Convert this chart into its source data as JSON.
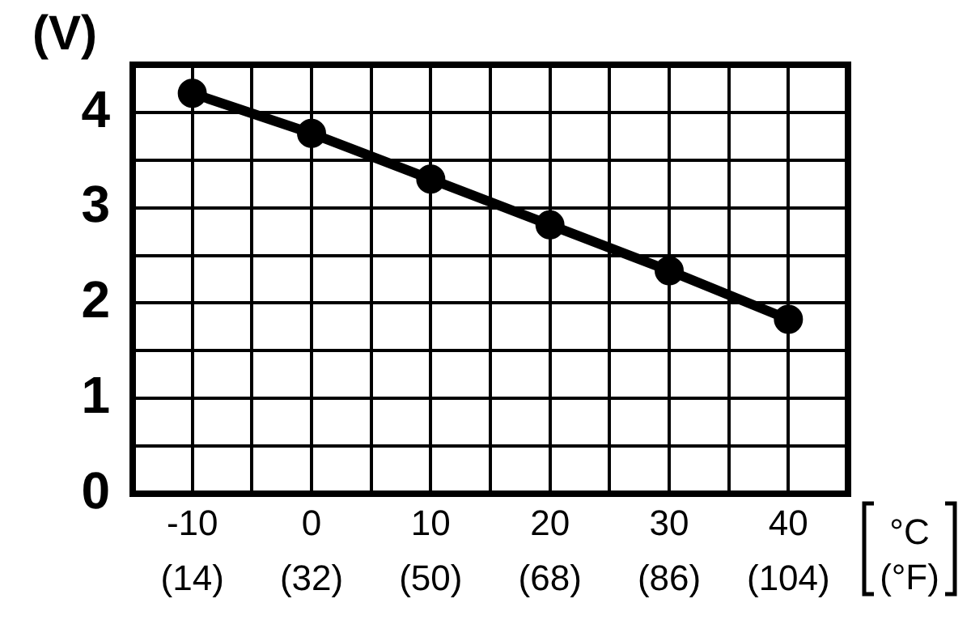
{
  "chart_data": {
    "type": "line",
    "ylabel": "(V)",
    "xlabel": "°C",
    "x2label": "(°F)",
    "x": [
      -10,
      0,
      10,
      20,
      30,
      40
    ],
    "series": [
      {
        "color": "#000000",
        "values": [
          4.2,
          3.78,
          3.3,
          2.82,
          2.34,
          1.83
        ]
      }
    ],
    "xlim": [
      -15,
      45
    ],
    "xticks": [
      {
        "value": -15,
        "label": null
      },
      -10,
      {
        "value": -5,
        "label": null
      },
      0,
      {
        "value": 5,
        "label": null
      },
      10,
      {
        "value": 15,
        "label": null
      },
      20,
      {
        "value": 25,
        "label": null
      },
      30,
      {
        "value": 35,
        "label": null
      },
      40,
      {
        "value": 45,
        "label": null
      }
    ],
    "x2lim": [
      5,
      113
    ],
    "x2ticks": [
      {
        "value": 14,
        "label": "(14)"
      },
      {
        "value": 32,
        "label": "(32)"
      },
      {
        "value": 50,
        "label": "(50)"
      },
      {
        "value": 68,
        "label": "(68)"
      },
      {
        "value": 86,
        "label": "(86)"
      },
      {
        "value": 104,
        "label": "(104)"
      }
    ],
    "ylim": [
      0,
      4.5
    ],
    "yticks": [
      0,
      {
        "value": 0.5,
        "label": null
      },
      1,
      {
        "value": 1.5,
        "label": null
      },
      2,
      {
        "value": 2.5,
        "label": null
      },
      3,
      {
        "value": 3.5,
        "label": null
      },
      4,
      {
        "value": 4.5,
        "label": null
      }
    ],
    "grid": true,
    "marker": "circle",
    "line_style": "solid",
    "legend": false
  }
}
